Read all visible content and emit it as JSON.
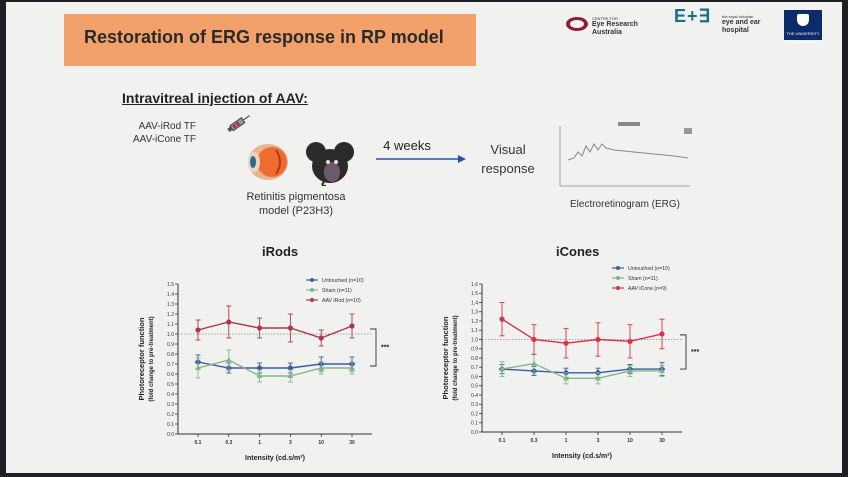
{
  "slide": {
    "title": "Restoration of ERG response in RP model",
    "logos": {
      "cera_top": "CENTRE FOR",
      "cera_main": "Eye Research Australia",
      "ee_mark": "E+∃",
      "ee_top": "the royal victorian",
      "ee_main": "eye and ear hospital",
      "uom": "THE UNIVERSITY OF MELBOURNE"
    },
    "colors": {
      "banner": "#f2a16a",
      "untouched": "#3c5aa8",
      "sham": "#7fb885",
      "aav": "#a83a4c",
      "aav_icone": "#d9324a"
    }
  },
  "schematic": {
    "heading": "Intravitreal injection of AAV:",
    "treatments": [
      "AAV-iRod TF",
      "AAV-iCone TF"
    ],
    "model_line1": "Retinitis pigmentosa",
    "model_line2": "model (P23H3)",
    "duration": "4 weeks",
    "outcome_line1": "Visual",
    "outcome_line2": "response",
    "erg_caption": "Electroretinogram (ERG)",
    "icons": [
      "syringe-icon",
      "eye-icon",
      "mouse-icon",
      "arrow-right-icon"
    ]
  },
  "chart_data": [
    {
      "type": "line",
      "title": "iRods",
      "xlabel": "Intensity (cd.s/m²)",
      "ylabel": "Photoreceptor function",
      "ylabel2": "(fold change to pre-treatment)",
      "categories": [
        "0.1",
        "0.3",
        "1",
        "3",
        "10",
        "30"
      ],
      "yticks": [
        "0.0",
        "0.1",
        "0.2",
        "0.3",
        "0.4",
        "0.5",
        "0.6",
        "0.7",
        "0.8",
        "0.9",
        "1.0",
        "1.1",
        "1.2",
        "1.3",
        "1.4",
        "1.5"
      ],
      "ylim": [
        0,
        1.5
      ],
      "significance": "***",
      "series": [
        {
          "name": "Untouched (n=10)",
          "values": [
            0.72,
            0.66,
            0.66,
            0.66,
            0.7,
            0.7
          ],
          "errors": [
            0.07,
            0.05,
            0.05,
            0.05,
            0.07,
            0.07
          ]
        },
        {
          "name": "Sham (n=11)",
          "values": [
            0.66,
            0.74,
            0.58,
            0.58,
            0.66,
            0.66
          ],
          "errors": [
            0.1,
            0.1,
            0.06,
            0.06,
            0.06,
            0.06
          ]
        },
        {
          "name": "AAV iRod (n=10)",
          "values": [
            1.04,
            1.12,
            1.06,
            1.06,
            0.96,
            1.08
          ],
          "errors": [
            0.1,
            0.16,
            0.1,
            0.14,
            0.08,
            0.12
          ]
        }
      ]
    },
    {
      "type": "line",
      "title": "iCones",
      "xlabel": "Intensity (cd.s/m²)",
      "ylabel": "Photoreceptor function",
      "ylabel2": "(fold change to pre-treatment)",
      "categories": [
        "0.1",
        "0.3",
        "1",
        "3",
        "10",
        "30"
      ],
      "yticks": [
        "0.0",
        "0.1",
        "0.2",
        "0.3",
        "0.4",
        "0.5",
        "0.6",
        "0.7",
        "0.8",
        "0.9",
        "1.0",
        "1.1",
        "1.2",
        "1.3",
        "1.4",
        "1.5",
        "1.6"
      ],
      "ylim": [
        0,
        1.6
      ],
      "significance": "***",
      "series": [
        {
          "name": "Untouched (n=10)",
          "values": [
            0.68,
            0.66,
            0.64,
            0.64,
            0.68,
            0.68
          ],
          "errors": [
            0.05,
            0.05,
            0.05,
            0.05,
            0.05,
            0.07
          ]
        },
        {
          "name": "Sham (n=11)",
          "values": [
            0.68,
            0.74,
            0.58,
            0.58,
            0.66,
            0.66
          ],
          "errors": [
            0.08,
            0.1,
            0.06,
            0.06,
            0.06,
            0.06
          ]
        },
        {
          "name": "AAV iCone (n=9)",
          "values": [
            1.22,
            1.0,
            0.96,
            1.0,
            0.98,
            1.06
          ],
          "errors": [
            0.18,
            0.16,
            0.16,
            0.18,
            0.18,
            0.16
          ]
        }
      ]
    }
  ]
}
